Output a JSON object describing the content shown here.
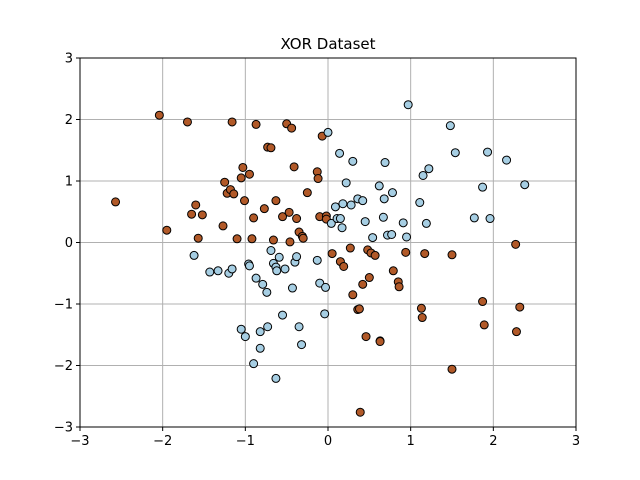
{
  "chart_data": {
    "type": "scatter",
    "title": "XOR Dataset",
    "xlabel": "",
    "ylabel": "",
    "xlim": [
      -3,
      3
    ],
    "ylim": [
      -3,
      3
    ],
    "xticks": [
      -3,
      -2,
      -1,
      0,
      1,
      2,
      3
    ],
    "yticks": [
      -3,
      -2,
      -1,
      0,
      1,
      2,
      3
    ],
    "grid": true,
    "colors": {
      "class_brown": "#b15928",
      "class_blue": "#a6cee3",
      "edge": "#000000",
      "grid": "#b0b0b0"
    },
    "series": [
      {
        "color": "#b15928",
        "points": [
          [
            -2.57,
            0.66
          ],
          [
            -2.04,
            2.07
          ],
          [
            -1.95,
            0.2
          ],
          [
            -1.7,
            1.96
          ],
          [
            -1.65,
            0.46
          ],
          [
            -1.6,
            0.61
          ],
          [
            -1.57,
            0.07
          ],
          [
            -1.52,
            0.45
          ],
          [
            -1.27,
            0.27
          ],
          [
            -1.25,
            0.98
          ],
          [
            -1.22,
            0.8
          ],
          [
            -1.18,
            0.86
          ],
          [
            -1.16,
            1.96
          ],
          [
            -1.14,
            0.79
          ],
          [
            -1.1,
            0.06
          ],
          [
            -1.05,
            1.05
          ],
          [
            -1.03,
            1.22
          ],
          [
            -1.01,
            0.68
          ],
          [
            -0.95,
            1.11
          ],
          [
            -0.92,
            0.06
          ],
          [
            -0.9,
            0.4
          ],
          [
            -0.87,
            1.92
          ],
          [
            -0.77,
            0.55
          ],
          [
            -0.73,
            1.55
          ],
          [
            -0.69,
            1.54
          ],
          [
            -0.66,
            0.04
          ],
          [
            -0.63,
            0.68
          ],
          [
            -0.55,
            0.42
          ],
          [
            -0.5,
            1.93
          ],
          [
            -0.47,
            0.49
          ],
          [
            -0.46,
            0.01
          ],
          [
            -0.44,
            1.86
          ],
          [
            -0.41,
            1.23
          ],
          [
            -0.38,
            0.39
          ],
          [
            -0.35,
            0.17
          ],
          [
            -0.31,
            0.1
          ],
          [
            -0.3,
            0.07
          ],
          [
            -0.25,
            0.81
          ],
          [
            -0.13,
            1.15
          ],
          [
            -0.12,
            1.04
          ],
          [
            -0.1,
            0.42
          ],
          [
            -0.07,
            1.73
          ],
          [
            -0.02,
            0.43
          ],
          [
            -0.02,
            0.38
          ],
          [
            0.05,
            -0.18
          ],
          [
            0.15,
            -0.31
          ],
          [
            0.19,
            -0.39
          ],
          [
            0.27,
            -0.09
          ],
          [
            0.3,
            -0.85
          ],
          [
            0.36,
            -1.09
          ],
          [
            0.38,
            -1.08
          ],
          [
            0.39,
            -2.76
          ],
          [
            0.42,
            -0.68
          ],
          [
            0.46,
            -1.53
          ],
          [
            0.48,
            -0.12
          ],
          [
            0.5,
            -0.57
          ],
          [
            0.52,
            -0.17
          ],
          [
            0.57,
            -0.21
          ],
          [
            0.63,
            -1.6
          ],
          [
            0.63,
            -1.61
          ],
          [
            0.79,
            -0.46
          ],
          [
            0.85,
            -0.64
          ],
          [
            0.86,
            -0.72
          ],
          [
            0.94,
            -0.16
          ],
          [
            1.13,
            -1.07
          ],
          [
            1.14,
            -1.22
          ],
          [
            1.17,
            -0.18
          ],
          [
            1.5,
            -0.2
          ],
          [
            1.5,
            -2.06
          ],
          [
            1.87,
            -0.96
          ],
          [
            1.89,
            -1.34
          ],
          [
            2.27,
            -0.03
          ],
          [
            2.28,
            -1.45
          ],
          [
            2.32,
            -1.05
          ]
        ]
      },
      {
        "color": "#a6cee3",
        "points": [
          [
            -1.62,
            -0.21
          ],
          [
            -1.43,
            -0.48
          ],
          [
            -1.33,
            -0.46
          ],
          [
            -1.2,
            -0.5
          ],
          [
            -1.16,
            -0.43
          ],
          [
            -1.05,
            -1.41
          ],
          [
            -1.0,
            -1.53
          ],
          [
            -0.96,
            -0.35
          ],
          [
            -0.95,
            -0.38
          ],
          [
            -0.9,
            -1.97
          ],
          [
            -0.87,
            -0.58
          ],
          [
            -0.82,
            -1.45
          ],
          [
            -0.82,
            -1.72
          ],
          [
            -0.79,
            -0.68
          ],
          [
            -0.74,
            -0.81
          ],
          [
            -0.73,
            -1.37
          ],
          [
            -0.69,
            -0.13
          ],
          [
            -0.66,
            -0.34
          ],
          [
            -0.63,
            -0.4
          ],
          [
            -0.63,
            -2.21
          ],
          [
            -0.62,
            -0.46
          ],
          [
            -0.59,
            -0.24
          ],
          [
            -0.55,
            -1.18
          ],
          [
            -0.52,
            -0.43
          ],
          [
            -0.43,
            -0.74
          ],
          [
            -0.4,
            -0.32
          ],
          [
            -0.38,
            -0.23
          ],
          [
            -0.35,
            -1.37
          ],
          [
            -0.32,
            -1.66
          ],
          [
            -0.13,
            -0.29
          ],
          [
            -0.1,
            -0.66
          ],
          [
            -0.04,
            -1.16
          ],
          [
            -0.03,
            -0.73
          ],
          [
            0.0,
            1.79
          ],
          [
            0.04,
            0.31
          ],
          [
            0.09,
            0.58
          ],
          [
            0.11,
            0.39
          ],
          [
            0.14,
            1.45
          ],
          [
            0.15,
            0.39
          ],
          [
            0.17,
            0.24
          ],
          [
            0.18,
            0.63
          ],
          [
            0.22,
            0.97
          ],
          [
            0.28,
            0.61
          ],
          [
            0.3,
            1.32
          ],
          [
            0.36,
            0.71
          ],
          [
            0.42,
            0.68
          ],
          [
            0.45,
            0.34
          ],
          [
            0.54,
            0.08
          ],
          [
            0.62,
            0.92
          ],
          [
            0.67,
            0.41
          ],
          [
            0.68,
            0.71
          ],
          [
            0.69,
            1.3
          ],
          [
            0.72,
            0.12
          ],
          [
            0.77,
            0.13
          ],
          [
            0.78,
            0.81
          ],
          [
            0.91,
            0.32
          ],
          [
            0.95,
            0.09
          ],
          [
            0.97,
            2.24
          ],
          [
            1.11,
            0.65
          ],
          [
            1.15,
            1.09
          ],
          [
            1.19,
            0.31
          ],
          [
            1.22,
            1.2
          ],
          [
            1.48,
            1.9
          ],
          [
            1.54,
            1.46
          ],
          [
            1.77,
            0.4
          ],
          [
            1.87,
            0.9
          ],
          [
            1.93,
            1.47
          ],
          [
            1.96,
            0.39
          ],
          [
            2.16,
            1.34
          ],
          [
            2.38,
            0.94
          ]
        ]
      }
    ]
  }
}
